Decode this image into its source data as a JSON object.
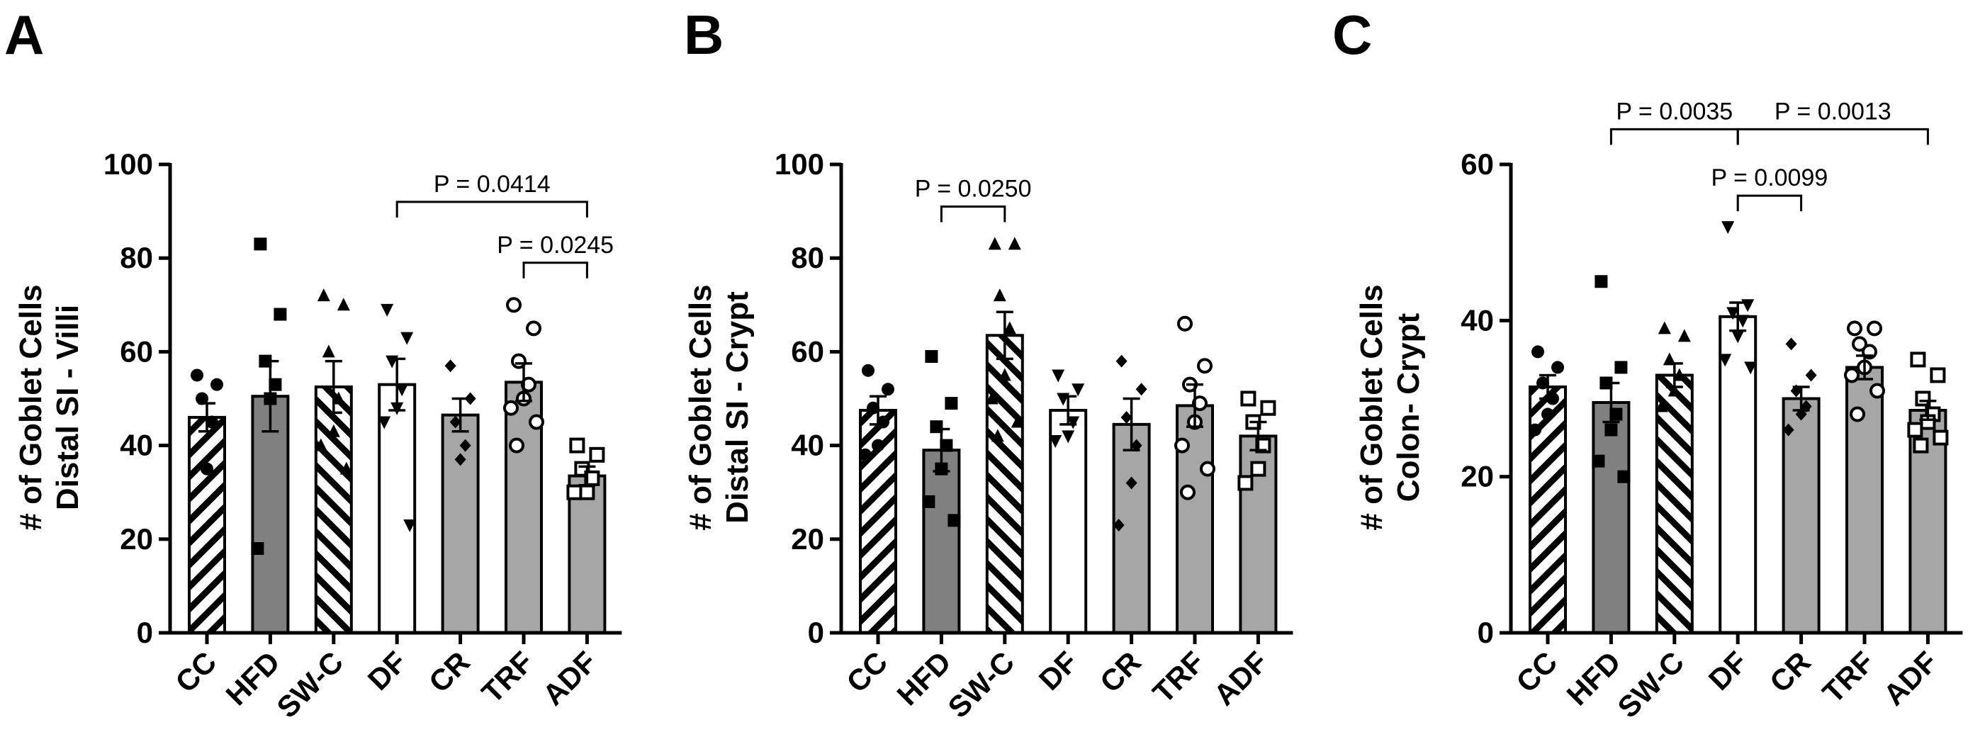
{
  "chart_data": [
    {
      "panel": "A",
      "type": "bar",
      "ylabel_lines": [
        "# of Goblet Cells",
        "Distal SI - Villi"
      ],
      "ylim": [
        0,
        100
      ],
      "yticks": [
        0,
        20,
        40,
        60,
        80,
        100
      ],
      "categories": [
        "CC",
        "HFD",
        "SW-C",
        "DF",
        "CR",
        "TRF",
        "ADF"
      ],
      "fills": [
        "hatch-forward",
        "#808080",
        "hatch-back",
        "#ffffff",
        "#a6a6a6",
        "#a6a6a6",
        "#a6a6a6"
      ],
      "markers": [
        "circle",
        "square",
        "triangle",
        "triangle-down",
        "diamond",
        "circle-open",
        "square-open"
      ],
      "means": [
        46,
        50.5,
        52.5,
        53,
        46.5,
        53.5,
        33.5
      ],
      "sem": [
        3,
        7.5,
        5.5,
        5.5,
        3.5,
        4,
        2
      ],
      "points": [
        [
          55,
          53,
          50,
          45,
          35
        ],
        [
          83,
          68,
          58,
          53,
          50,
          18
        ],
        [
          72,
          70,
          60,
          50,
          43,
          40,
          35
        ],
        [
          69,
          63,
          58,
          52,
          48,
          45,
          23
        ],
        [
          57,
          50,
          45,
          40,
          37
        ],
        [
          70,
          65,
          58,
          53,
          50,
          48,
          45,
          40
        ],
        [
          40,
          38,
          35,
          33,
          30,
          30
        ]
      ],
      "comparisons": [
        {
          "from": "DF",
          "to": "ADF",
          "label": "P = 0.0414",
          "y": 92
        },
        {
          "from": "TRF",
          "to": "ADF",
          "label": "P = 0.0245",
          "y": 79
        }
      ]
    },
    {
      "panel": "B",
      "type": "bar",
      "ylabel_lines": [
        "# of Goblet Cells",
        "Distal SI - Crypt"
      ],
      "ylim": [
        0,
        100
      ],
      "yticks": [
        0,
        20,
        40,
        60,
        80,
        100
      ],
      "categories": [
        "CC",
        "HFD",
        "SW-C",
        "DF",
        "CR",
        "TRF",
        "ADF"
      ],
      "fills": [
        "hatch-forward",
        "#808080",
        "hatch-back",
        "#ffffff",
        "#a6a6a6",
        "#a6a6a6",
        "#a6a6a6"
      ],
      "markers": [
        "circle",
        "square",
        "triangle",
        "triangle-down",
        "diamond",
        "circle-open",
        "square-open"
      ],
      "means": [
        47.5,
        39,
        63.5,
        47.5,
        44.5,
        48.5,
        42
      ],
      "sem": [
        3,
        4.5,
        5,
        3,
        5.5,
        4.5,
        3
      ],
      "points": [
        [
          56,
          52,
          48,
          45,
          40,
          38
        ],
        [
          59,
          49,
          44,
          40,
          35,
          28,
          24
        ],
        [
          83,
          83,
          72,
          65,
          55,
          50,
          45,
          42
        ],
        [
          55,
          52,
          50,
          45,
          42,
          41
        ],
        [
          58,
          52,
          46,
          40,
          32,
          23
        ],
        [
          66,
          57,
          53,
          49,
          45,
          40,
          35,
          30
        ],
        [
          50,
          48,
          45,
          40,
          35,
          32
        ]
      ],
      "comparisons": [
        {
          "from": "HFD",
          "to": "SW-C",
          "label": "P = 0.0250",
          "y": 91
        }
      ]
    },
    {
      "panel": "C",
      "type": "bar",
      "ylabel_lines": [
        "# of Goblet  Cells",
        "Colon- Crypt"
      ],
      "ylim": [
        0,
        60
      ],
      "yticks": [
        0,
        20,
        40,
        60
      ],
      "categories": [
        "CC",
        "HFD",
        "SW-C",
        "DF",
        "CR",
        "TRF",
        "ADF"
      ],
      "fills": [
        "hatch-forward",
        "#808080",
        "hatch-back",
        "#ffffff",
        "#a6a6a6",
        "#a6a6a6",
        "#a6a6a6"
      ],
      "markers": [
        "circle",
        "square",
        "triangle",
        "triangle-down",
        "diamond",
        "circle-open",
        "square-open"
      ],
      "means": [
        31.5,
        29.5,
        33,
        40.5,
        30,
        34,
        28.5
      ],
      "sem": [
        1.5,
        2.5,
        1.5,
        1.8,
        1.5,
        1.5,
        1.2
      ],
      "points": [
        [
          36,
          34,
          32,
          30,
          28,
          26
        ],
        [
          45,
          34,
          32,
          28,
          26,
          22,
          20
        ],
        [
          39,
          38,
          35,
          33,
          31,
          29
        ],
        [
          52,
          42,
          41,
          40,
          38,
          35,
          34
        ],
        [
          37,
          33,
          31,
          29,
          28,
          26
        ],
        [
          39,
          39,
          37,
          36,
          34,
          33,
          31,
          28
        ],
        [
          35,
          33,
          30,
          28,
          27,
          26,
          25,
          24
        ]
      ],
      "comparisons": [
        {
          "from": "HFD",
          "to": "DF",
          "label": "P = 0.0035",
          "y": 64.5
        },
        {
          "from": "DF",
          "to": "ADF",
          "label": "P = 0.0013",
          "y": 64.5
        },
        {
          "from": "DF",
          "to": "CR",
          "label": "P = 0.0099",
          "y": 56
        }
      ]
    }
  ]
}
